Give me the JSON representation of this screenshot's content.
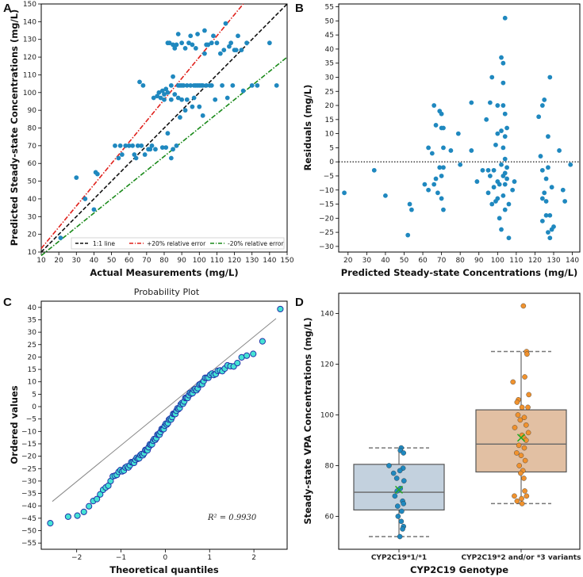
{
  "colors": {
    "blue_point": "#1f88bf",
    "identity_line": "#111111",
    "plus20_line": "#e0201b",
    "minus20_line": "#1a8a1a",
    "qq_face": "#45e3d4",
    "qq_edge": "#2233aa",
    "box1_fill": "#c3d1de",
    "box2_fill": "#e2c0a3",
    "orange_point": "#f0922e",
    "mean_marker": "#22aa22"
  },
  "chart_data": [
    {
      "panel": "A",
      "type": "scatter",
      "title": "",
      "xlabel": "Actual Measurements (mg/L)",
      "ylabel": "Predicted Steady-state Concentrations (mg/L)",
      "xlim": [
        10,
        150
      ],
      "ylim": [
        10,
        150
      ],
      "xticks": [
        10,
        20,
        30,
        40,
        50,
        60,
        70,
        80,
        90,
        100,
        110,
        120,
        130,
        140,
        150
      ],
      "yticks": [
        10,
        20,
        30,
        40,
        50,
        60,
        70,
        80,
        90,
        100,
        110,
        120,
        130,
        140,
        150
      ],
      "legend": [
        "1:1 line",
        "+20% relative error",
        "-20% relative error"
      ],
      "points": [
        [
          21,
          18
        ],
        [
          30,
          52
        ],
        [
          35,
          40
        ],
        [
          40,
          34
        ],
        [
          41,
          55
        ],
        [
          42,
          54
        ],
        [
          52,
          70
        ],
        [
          54,
          63
        ],
        [
          55,
          70
        ],
        [
          56,
          65
        ],
        [
          58,
          70
        ],
        [
          60,
          70
        ],
        [
          62,
          70
        ],
        [
          63,
          65
        ],
        [
          64,
          63
        ],
        [
          65,
          70
        ],
        [
          67,
          70
        ],
        [
          66,
          106
        ],
        [
          68,
          104
        ],
        [
          69,
          65
        ],
        [
          71,
          68
        ],
        [
          72,
          68
        ],
        [
          73,
          70
        ],
        [
          74,
          97
        ],
        [
          75,
          68
        ],
        [
          76,
          98
        ],
        [
          77,
          100
        ],
        [
          78,
          97
        ],
        [
          79,
          101
        ],
        [
          79,
          69
        ],
        [
          80,
          99
        ],
        [
          80,
          96
        ],
        [
          81,
          102
        ],
        [
          81,
          69
        ],
        [
          82,
          100
        ],
        [
          82,
          128
        ],
        [
          82,
          77
        ],
        [
          83,
          128
        ],
        [
          84,
          96
        ],
        [
          84,
          63
        ],
        [
          84,
          104
        ],
        [
          85,
          127
        ],
        [
          85,
          109
        ],
        [
          85,
          68
        ],
        [
          86,
          125
        ],
        [
          86,
          99
        ],
        [
          87,
          127
        ],
        [
          87,
          70
        ],
        [
          88,
          104
        ],
        [
          88,
          97
        ],
        [
          88,
          133
        ],
        [
          89,
          104
        ],
        [
          89,
          86
        ],
        [
          90,
          104
        ],
        [
          90,
          128
        ],
        [
          90,
          96
        ],
        [
          91,
          104
        ],
        [
          92,
          125
        ],
        [
          92,
          90
        ],
        [
          93,
          104
        ],
        [
          93,
          96
        ],
        [
          94,
          128
        ],
        [
          95,
          132
        ],
        [
          95,
          104
        ],
        [
          96,
          127
        ],
        [
          96,
          92
        ],
        [
          97,
          104
        ],
        [
          97,
          97
        ],
        [
          98,
          104
        ],
        [
          98,
          125
        ],
        [
          99,
          133
        ],
        [
          99,
          104
        ],
        [
          100,
          104
        ],
        [
          100,
          92
        ],
        [
          101,
          104
        ],
        [
          102,
          104
        ],
        [
          102,
          87
        ],
        [
          103,
          135
        ],
        [
          103,
          122
        ],
        [
          104,
          127
        ],
        [
          104,
          104
        ],
        [
          105,
          127
        ],
        [
          106,
          104
        ],
        [
          107,
          128
        ],
        [
          107,
          104
        ],
        [
          108,
          132
        ],
        [
          109,
          96
        ],
        [
          110,
          128
        ],
        [
          112,
          122
        ],
        [
          113,
          104
        ],
        [
          114,
          124
        ],
        [
          115,
          139
        ],
        [
          116,
          97
        ],
        [
          117,
          126
        ],
        [
          118,
          128
        ],
        [
          119,
          104
        ],
        [
          120,
          124
        ],
        [
          121,
          124
        ],
        [
          122,
          132
        ],
        [
          124,
          124
        ],
        [
          125,
          101
        ],
        [
          127,
          128
        ],
        [
          130,
          104
        ],
        [
          133,
          104
        ],
        [
          140,
          128
        ],
        [
          144,
          104
        ]
      ]
    },
    {
      "panel": "B",
      "type": "scatter",
      "title": "",
      "xlabel": "Predicted Steady-state Concentrations (mg/L)",
      "ylabel": "Residuals (mg/L)",
      "xlim": [
        15,
        144
      ],
      "ylim": [
        -32,
        56
      ],
      "xticks": [
        20,
        30,
        40,
        50,
        60,
        70,
        80,
        90,
        100,
        110,
        120,
        130,
        140
      ],
      "yticks": [
        -30,
        -25,
        -20,
        -15,
        -10,
        -5,
        0,
        5,
        10,
        15,
        20,
        25,
        30,
        35,
        40,
        45,
        50,
        55
      ],
      "points": [
        [
          18,
          -11
        ],
        [
          34,
          -3
        ],
        [
          40,
          -12
        ],
        [
          52,
          -26
        ],
        [
          53,
          -15
        ],
        [
          54,
          -17
        ],
        [
          61,
          -8
        ],
        [
          63,
          5
        ],
        [
          63,
          -10
        ],
        [
          65,
          3
        ],
        [
          66,
          -8
        ],
        [
          66,
          20
        ],
        [
          67,
          13
        ],
        [
          67,
          -6
        ],
        [
          68,
          -11
        ],
        [
          69,
          18
        ],
        [
          69,
          -2
        ],
        [
          70,
          12
        ],
        [
          70,
          17
        ],
        [
          70,
          -5
        ],
        [
          70,
          -13
        ],
        [
          71,
          12
        ],
        [
          71,
          5
        ],
        [
          71,
          -17
        ],
        [
          71,
          -2
        ],
        [
          75,
          4
        ],
        [
          79,
          10
        ],
        [
          80,
          -1
        ],
        [
          86,
          21
        ],
        [
          86,
          4
        ],
        [
          89,
          -7
        ],
        [
          92,
          -3
        ],
        [
          94,
          15
        ],
        [
          95,
          -3
        ],
        [
          95,
          -11
        ],
        [
          96,
          21
        ],
        [
          96,
          -5
        ],
        [
          97,
          30
        ],
        [
          97,
          -15
        ],
        [
          98,
          -3
        ],
        [
          98,
          -9
        ],
        [
          99,
          -14
        ],
        [
          99,
          6
        ],
        [
          100,
          10
        ],
        [
          100,
          -7
        ],
        [
          100,
          -13
        ],
        [
          100,
          20
        ],
        [
          101,
          -20
        ],
        [
          101,
          -8
        ],
        [
          102,
          37
        ],
        [
          102,
          -1
        ],
        [
          102,
          11
        ],
        [
          102,
          -24
        ],
        [
          103,
          35
        ],
        [
          103,
          28
        ],
        [
          103,
          20
        ],
        [
          103,
          5
        ],
        [
          103,
          -5
        ],
        [
          103,
          -12
        ],
        [
          104,
          51
        ],
        [
          104,
          17
        ],
        [
          104,
          9
        ],
        [
          104,
          1
        ],
        [
          104,
          -4
        ],
        [
          104,
          -8
        ],
        [
          104,
          -17
        ],
        [
          105,
          12
        ],
        [
          105,
          -2
        ],
        [
          105,
          -6
        ],
        [
          106,
          -15
        ],
        [
          106,
          -27
        ],
        [
          108,
          -10
        ],
        [
          109,
          -7
        ],
        [
          122,
          16
        ],
        [
          123,
          2
        ],
        [
          124,
          20
        ],
        [
          124,
          -3
        ],
        [
          124,
          -13
        ],
        [
          124,
          -21
        ],
        [
          125,
          22
        ],
        [
          125,
          -11
        ],
        [
          126,
          -6
        ],
        [
          126,
          -14
        ],
        [
          126,
          -19
        ],
        [
          127,
          -2
        ],
        [
          127,
          9
        ],
        [
          127,
          -25
        ],
        [
          128,
          -27
        ],
        [
          128,
          30
        ],
        [
          128,
          -19
        ],
        [
          129,
          -24
        ],
        [
          129,
          -9
        ],
        [
          130,
          -23
        ],
        [
          133,
          4
        ],
        [
          135,
          -10
        ],
        [
          136,
          -14
        ],
        [
          139,
          -1
        ]
      ]
    },
    {
      "panel": "C",
      "type": "scatter",
      "title": "Probability Plot",
      "xlabel": "Theoretical quantiles",
      "ylabel": "Ordered values",
      "xlim": [
        -2.8,
        2.75
      ],
      "ylim": [
        -57.5,
        42.5
      ],
      "xticks": [
        -2,
        -1,
        0,
        1,
        2
      ],
      "yticks": [
        -55,
        -50,
        -45,
        -40,
        -35,
        -30,
        -25,
        -20,
        -15,
        -10,
        -5,
        0,
        5,
        10,
        15,
        20,
        25,
        30,
        35,
        40
      ],
      "fit_line": {
        "slope": 14.6,
        "intercept": -1.0
      },
      "annotation": "R² = 0.9930",
      "n_points": 106,
      "q_points": [
        [
          -2.55,
          -47
        ],
        [
          -2.2,
          -45
        ],
        [
          -2.0,
          -44
        ],
        [
          -1.85,
          -42
        ],
        [
          -1.75,
          -41
        ],
        [
          -1.65,
          -39
        ],
        [
          -1.55,
          -37
        ],
        [
          -1.47,
          -35
        ],
        [
          -1.4,
          -34
        ],
        [
          -1.35,
          -33
        ],
        [
          -1.2,
          -29
        ],
        [
          -1.1,
          -27
        ],
        [
          -0.9,
          -25
        ],
        [
          -0.5,
          -19
        ],
        [
          -0.4,
          -17
        ],
        [
          0.5,
          4
        ],
        [
          0.62,
          6
        ],
        [
          0.7,
          7
        ],
        [
          0.8,
          9
        ],
        [
          0.95,
          12
        ],
        [
          1.2,
          14
        ],
        [
          1.3,
          15
        ],
        [
          1.4,
          16
        ],
        [
          1.5,
          16.5
        ],
        [
          1.58,
          17
        ],
        [
          1.65,
          17.5
        ],
        [
          1.75,
          20
        ],
        [
          1.85,
          21
        ],
        [
          1.95,
          21
        ],
        [
          2.2,
          26
        ],
        [
          2.55,
          39
        ]
      ]
    },
    {
      "panel": "D",
      "type": "box",
      "title": "",
      "xlabel": "CYP2C19 Genotype",
      "ylabel": "Steady-state VPA Concentrations (mg/L)",
      "ylim": [
        47,
        148
      ],
      "yticks": [
        60,
        80,
        100,
        120,
        140
      ],
      "categories": [
        "CYP2C19*1/*1",
        "CYP2C19*2 and/or *3 variants"
      ],
      "boxes": [
        {
          "q1": 62.5,
          "median": 69.5,
          "q3": 80.5,
          "whisker_low": 52,
          "whisker_high": 87,
          "mean": 70.5
        },
        {
          "q1": 77.5,
          "median": 88.5,
          "q3": 102,
          "whisker_low": 65,
          "whisker_high": 125,
          "mean": 91
        }
      ],
      "points": [
        [
          [
            87,
            0.05
          ],
          [
            86,
            0.03
          ],
          [
            85,
            0.1
          ],
          [
            80,
            -0.22
          ],
          [
            79,
            0.09
          ],
          [
            78,
            0.02
          ],
          [
            77,
            -0.12
          ],
          [
            75,
            -0.05
          ],
          [
            74,
            0.11
          ],
          [
            71,
            0.03
          ],
          [
            70,
            -0.04
          ],
          [
            68,
            -0.09
          ],
          [
            66,
            0.08
          ],
          [
            65,
            0.1
          ],
          [
            64,
            -0.03
          ],
          [
            62,
            0.06
          ],
          [
            60,
            -0.02
          ],
          [
            58,
            0.05
          ],
          [
            56,
            0.1
          ],
          [
            55,
            0.08
          ],
          [
            52,
            0.02
          ]
        ],
        [
          [
            143,
            0.05
          ],
          [
            125,
            0.12
          ],
          [
            124,
            0.13
          ],
          [
            115,
            0.08
          ],
          [
            113,
            -0.18
          ],
          [
            108,
            0.17
          ],
          [
            106,
            -0.06
          ],
          [
            105,
            -0.09
          ],
          [
            103,
            0.02
          ],
          [
            103,
            0.15
          ],
          [
            100,
            -0.07
          ],
          [
            99,
            0.07
          ],
          [
            98,
            -0.02
          ],
          [
            96,
            0.11
          ],
          [
            95,
            -0.14
          ],
          [
            93,
            0.16
          ],
          [
            92,
            0.02
          ],
          [
            91,
            0.06
          ],
          [
            90,
            0.11
          ],
          [
            88,
            -0.05
          ],
          [
            87,
            0.07
          ],
          [
            85,
            -0.1
          ],
          [
            84,
            0.0
          ],
          [
            82,
            0.09
          ],
          [
            80,
            -0.04
          ],
          [
            78,
            0.04
          ],
          [
            77,
            -0.01
          ],
          [
            75,
            0.06
          ],
          [
            70,
            0.08
          ],
          [
            68,
            -0.15
          ],
          [
            68,
            0.12
          ],
          [
            67,
            0.01
          ],
          [
            66,
            -0.09
          ],
          [
            65,
            0.02
          ]
        ]
      ]
    }
  ]
}
